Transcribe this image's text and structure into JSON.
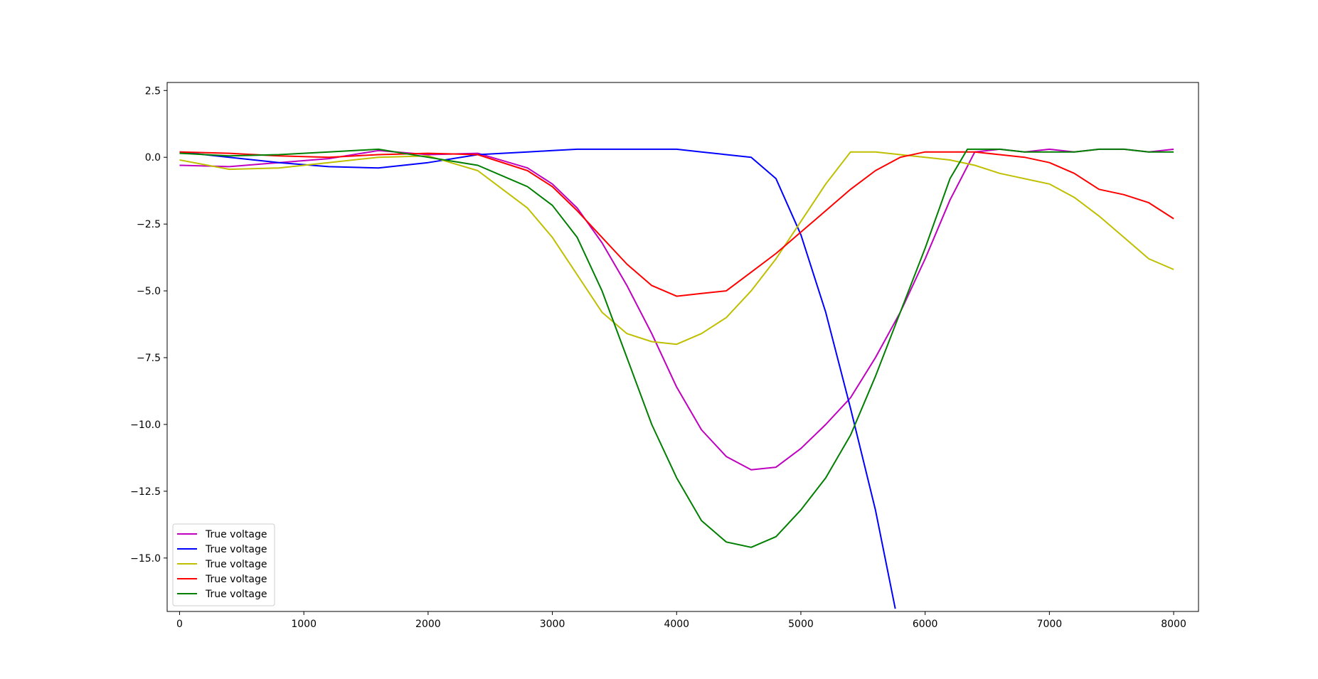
{
  "chart_data": {
    "type": "line",
    "xlim": [
      -100,
      8200
    ],
    "ylim": [
      -17.0,
      2.8
    ],
    "xticks": [
      0,
      1000,
      2000,
      3000,
      4000,
      5000,
      6000,
      7000,
      8000
    ],
    "yticks": [
      2.5,
      0.0,
      -2.5,
      -5.0,
      -7.5,
      -10.0,
      -12.5,
      -15.0
    ],
    "xtick_labels": [
      "0",
      "1000",
      "2000",
      "3000",
      "4000",
      "5000",
      "6000",
      "7000",
      "8000"
    ],
    "ytick_labels": [
      "2.5",
      "0.0",
      "−2.5",
      "−5.0",
      "−7.5",
      "−10.0",
      "−12.5",
      "−15.0"
    ],
    "grid": false,
    "legend_position": "lower-left",
    "series": [
      {
        "name": "True voltage",
        "color": "#bf00bf",
        "x": [
          0,
          400,
          800,
          1200,
          1600,
          2000,
          2400,
          2800,
          3000,
          3200,
          3400,
          3600,
          3800,
          4000,
          4200,
          4400,
          4600,
          4800,
          5000,
          5200,
          5400,
          5600,
          5800,
          6000,
          6200,
          6400,
          6600,
          6800,
          7000,
          7200,
          7400,
          7600,
          7800,
          8000
        ],
        "y": [
          -0.3,
          -0.35,
          -0.2,
          -0.05,
          0.25,
          0.1,
          0.15,
          -0.4,
          -1.0,
          -1.9,
          -3.2,
          -4.8,
          -6.6,
          -8.6,
          -10.2,
          -11.2,
          -11.7,
          -11.6,
          -10.9,
          -10.0,
          -9.0,
          -7.5,
          -5.8,
          -3.8,
          -1.6,
          0.2,
          0.3,
          0.2,
          0.3,
          0.2,
          0.3,
          0.3,
          0.2,
          0.3
        ]
      },
      {
        "name": "True voltage",
        "color": "#0000ff",
        "x": [
          0,
          400,
          800,
          1200,
          1600,
          2000,
          2400,
          2800,
          3000,
          3200,
          3400,
          3600,
          3800,
          4000,
          4200,
          4400,
          4600,
          4800,
          5000,
          5200,
          5400,
          5600,
          5760
        ],
        "y": [
          0.2,
          0.0,
          -0.2,
          -0.35,
          -0.4,
          -0.2,
          0.1,
          0.2,
          0.25,
          0.3,
          0.3,
          0.3,
          0.3,
          0.3,
          0.2,
          0.1,
          0.0,
          -0.8,
          -2.9,
          -5.8,
          -9.4,
          -13.2,
          -16.9
        ]
      },
      {
        "name": "True voltage",
        "color": "#bfbf00",
        "x": [
          0,
          400,
          800,
          1200,
          1600,
          2000,
          2400,
          2800,
          3000,
          3200,
          3400,
          3600,
          3800,
          4000,
          4200,
          4400,
          4600,
          4800,
          5000,
          5200,
          5400,
          5600,
          5800,
          6000,
          6200,
          6400,
          6600,
          6800,
          7000,
          7200,
          7400,
          7600,
          7800,
          8000
        ],
        "y": [
          -0.1,
          -0.45,
          -0.4,
          -0.2,
          0.0,
          0.05,
          -0.5,
          -1.9,
          -3.0,
          -4.4,
          -5.8,
          -6.6,
          -6.9,
          -7.0,
          -6.6,
          -6.0,
          -5.0,
          -3.8,
          -2.4,
          -1.0,
          0.2,
          0.2,
          0.1,
          0.0,
          -0.1,
          -0.3,
          -0.6,
          -0.8,
          -1.0,
          -1.5,
          -2.2,
          -3.0,
          -3.8,
          -4.2
        ]
      },
      {
        "name": "True voltage",
        "color": "#ff0000",
        "x": [
          0,
          400,
          800,
          1200,
          1600,
          2000,
          2400,
          2800,
          3000,
          3200,
          3400,
          3600,
          3800,
          4000,
          4200,
          4400,
          4600,
          4800,
          5000,
          5200,
          5400,
          5600,
          5800,
          6000,
          6200,
          6400,
          6600,
          6800,
          7000,
          7200,
          7400,
          7600,
          7800,
          8000
        ],
        "y": [
          0.2,
          0.15,
          0.05,
          0.0,
          0.1,
          0.15,
          0.1,
          -0.5,
          -1.1,
          -2.0,
          -3.0,
          -4.0,
          -4.8,
          -5.2,
          -5.1,
          -5.0,
          -4.3,
          -3.6,
          -2.8,
          -2.0,
          -1.2,
          -0.5,
          0.0,
          0.2,
          0.2,
          0.2,
          0.1,
          0.0,
          -0.2,
          -0.6,
          -1.2,
          -1.4,
          -1.7,
          -2.3
        ]
      },
      {
        "name": "True voltage",
        "color": "#007f00",
        "x": [
          0,
          400,
          800,
          1200,
          1600,
          2000,
          2400,
          2800,
          3000,
          3200,
          3400,
          3600,
          3800,
          4000,
          4200,
          4400,
          4600,
          4800,
          5000,
          5200,
          5400,
          5600,
          5800,
          6000,
          6200,
          6340,
          6600,
          6800,
          7000,
          7200,
          7400,
          7600,
          7800,
          8000
        ],
        "y": [
          0.15,
          0.05,
          0.1,
          0.2,
          0.3,
          0.0,
          -0.3,
          -1.1,
          -1.8,
          -3.0,
          -5.0,
          -7.5,
          -10.0,
          -12.0,
          -13.6,
          -14.4,
          -14.6,
          -14.2,
          -13.2,
          -12.0,
          -10.4,
          -8.2,
          -5.8,
          -3.4,
          -0.8,
          0.3,
          0.3,
          0.2,
          0.2,
          0.2,
          0.3,
          0.3,
          0.2,
          0.2
        ]
      }
    ]
  }
}
